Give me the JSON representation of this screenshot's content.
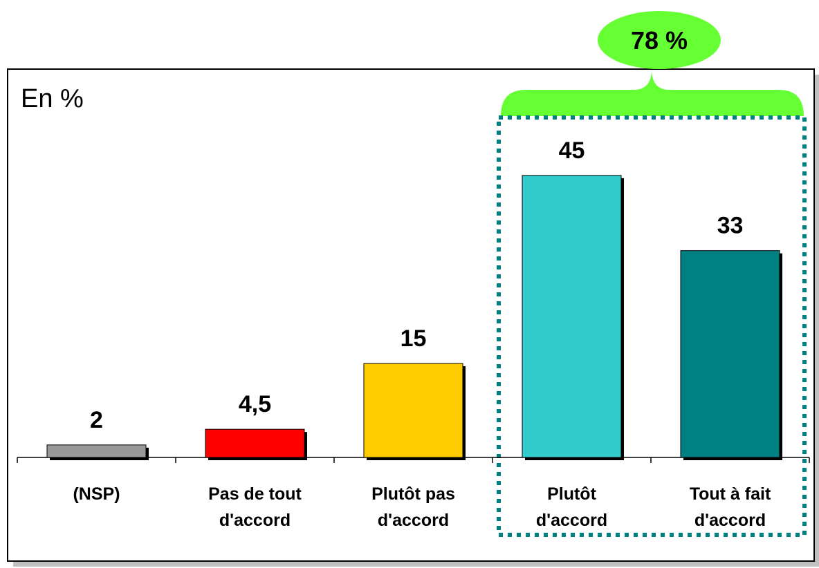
{
  "chart_data": {
    "type": "bar",
    "unit_label": "En %",
    "categories": [
      [
        "(NSP)"
      ],
      [
        "Pas de tout",
        "d'accord"
      ],
      [
        "Plutôt pas",
        "d'accord"
      ],
      [
        "Plutôt",
        "d'accord"
      ],
      [
        "Tout à fait",
        "d'accord"
      ]
    ],
    "values": [
      2,
      4.5,
      15,
      45,
      33
    ],
    "value_labels": [
      "2",
      "4,5",
      "15",
      "45",
      "33"
    ],
    "bar_colors": [
      "#999999",
      "#ff0000",
      "#ffcc00",
      "#33cccc",
      "#008080"
    ],
    "ylim": [
      0,
      50
    ],
    "grid": false,
    "annotation": {
      "text": "78 %",
      "groups_categories": [
        3,
        4
      ],
      "bubble_color": "#66ff33",
      "frame_color": "#008080"
    }
  }
}
